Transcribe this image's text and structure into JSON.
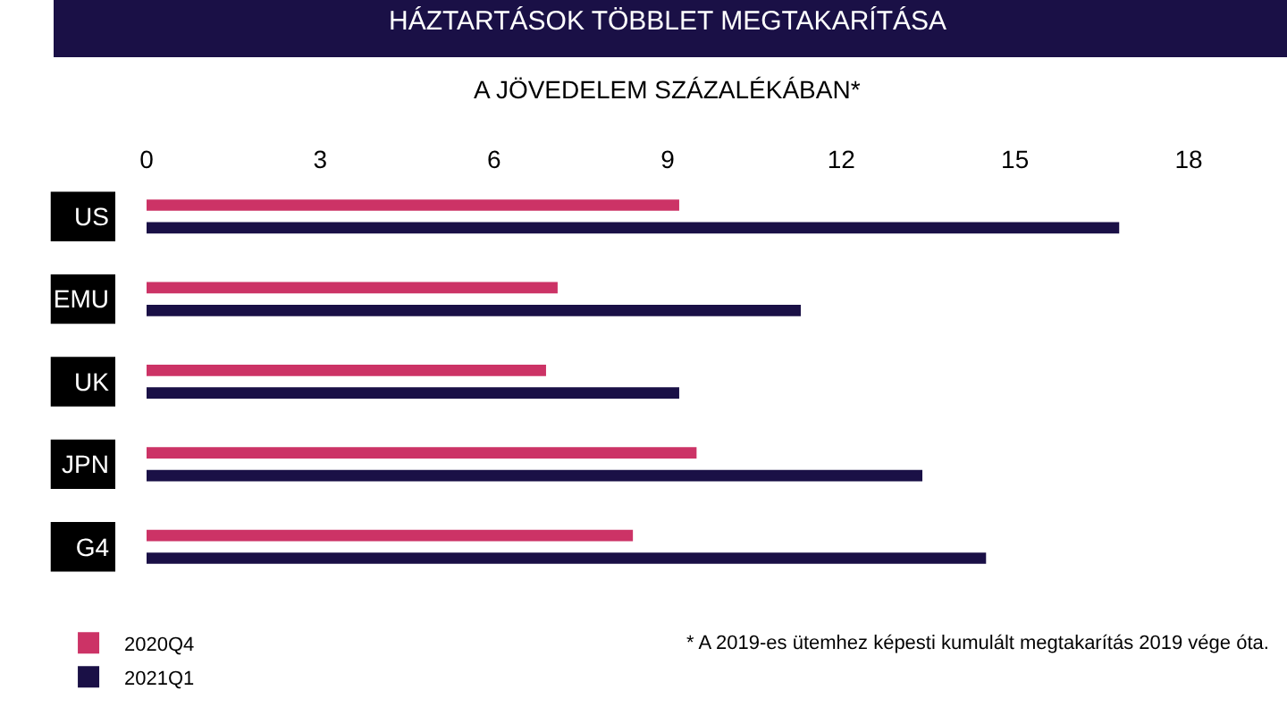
{
  "chart_data": {
    "type": "bar",
    "orientation": "horizontal",
    "title": "HÁZTARTÁSOK TÖBBLET MEGTAKARÍTÁSA",
    "subtitle": "A JÖVEDELEM SZÁZALÉKÁBAN*",
    "categories": [
      "US",
      "EMU",
      "UK",
      "JPN",
      "G4"
    ],
    "series": [
      {
        "name": "2020Q4",
        "color": "#cc3366",
        "values": [
          9.2,
          7.1,
          6.9,
          9.5,
          8.4
        ]
      },
      {
        "name": "2021Q1",
        "color": "#1a1046",
        "values": [
          16.8,
          11.3,
          9.2,
          13.4,
          14.5
        ]
      }
    ],
    "xlim": [
      0,
      18
    ],
    "xticks": [
      0,
      3,
      6,
      9,
      12,
      15,
      18
    ],
    "grid": false,
    "legend": "bottom left",
    "annotations": [
      "* A 2019-es ütemhez képesti kumulált megtakarítás 2019 vége óta."
    ]
  }
}
